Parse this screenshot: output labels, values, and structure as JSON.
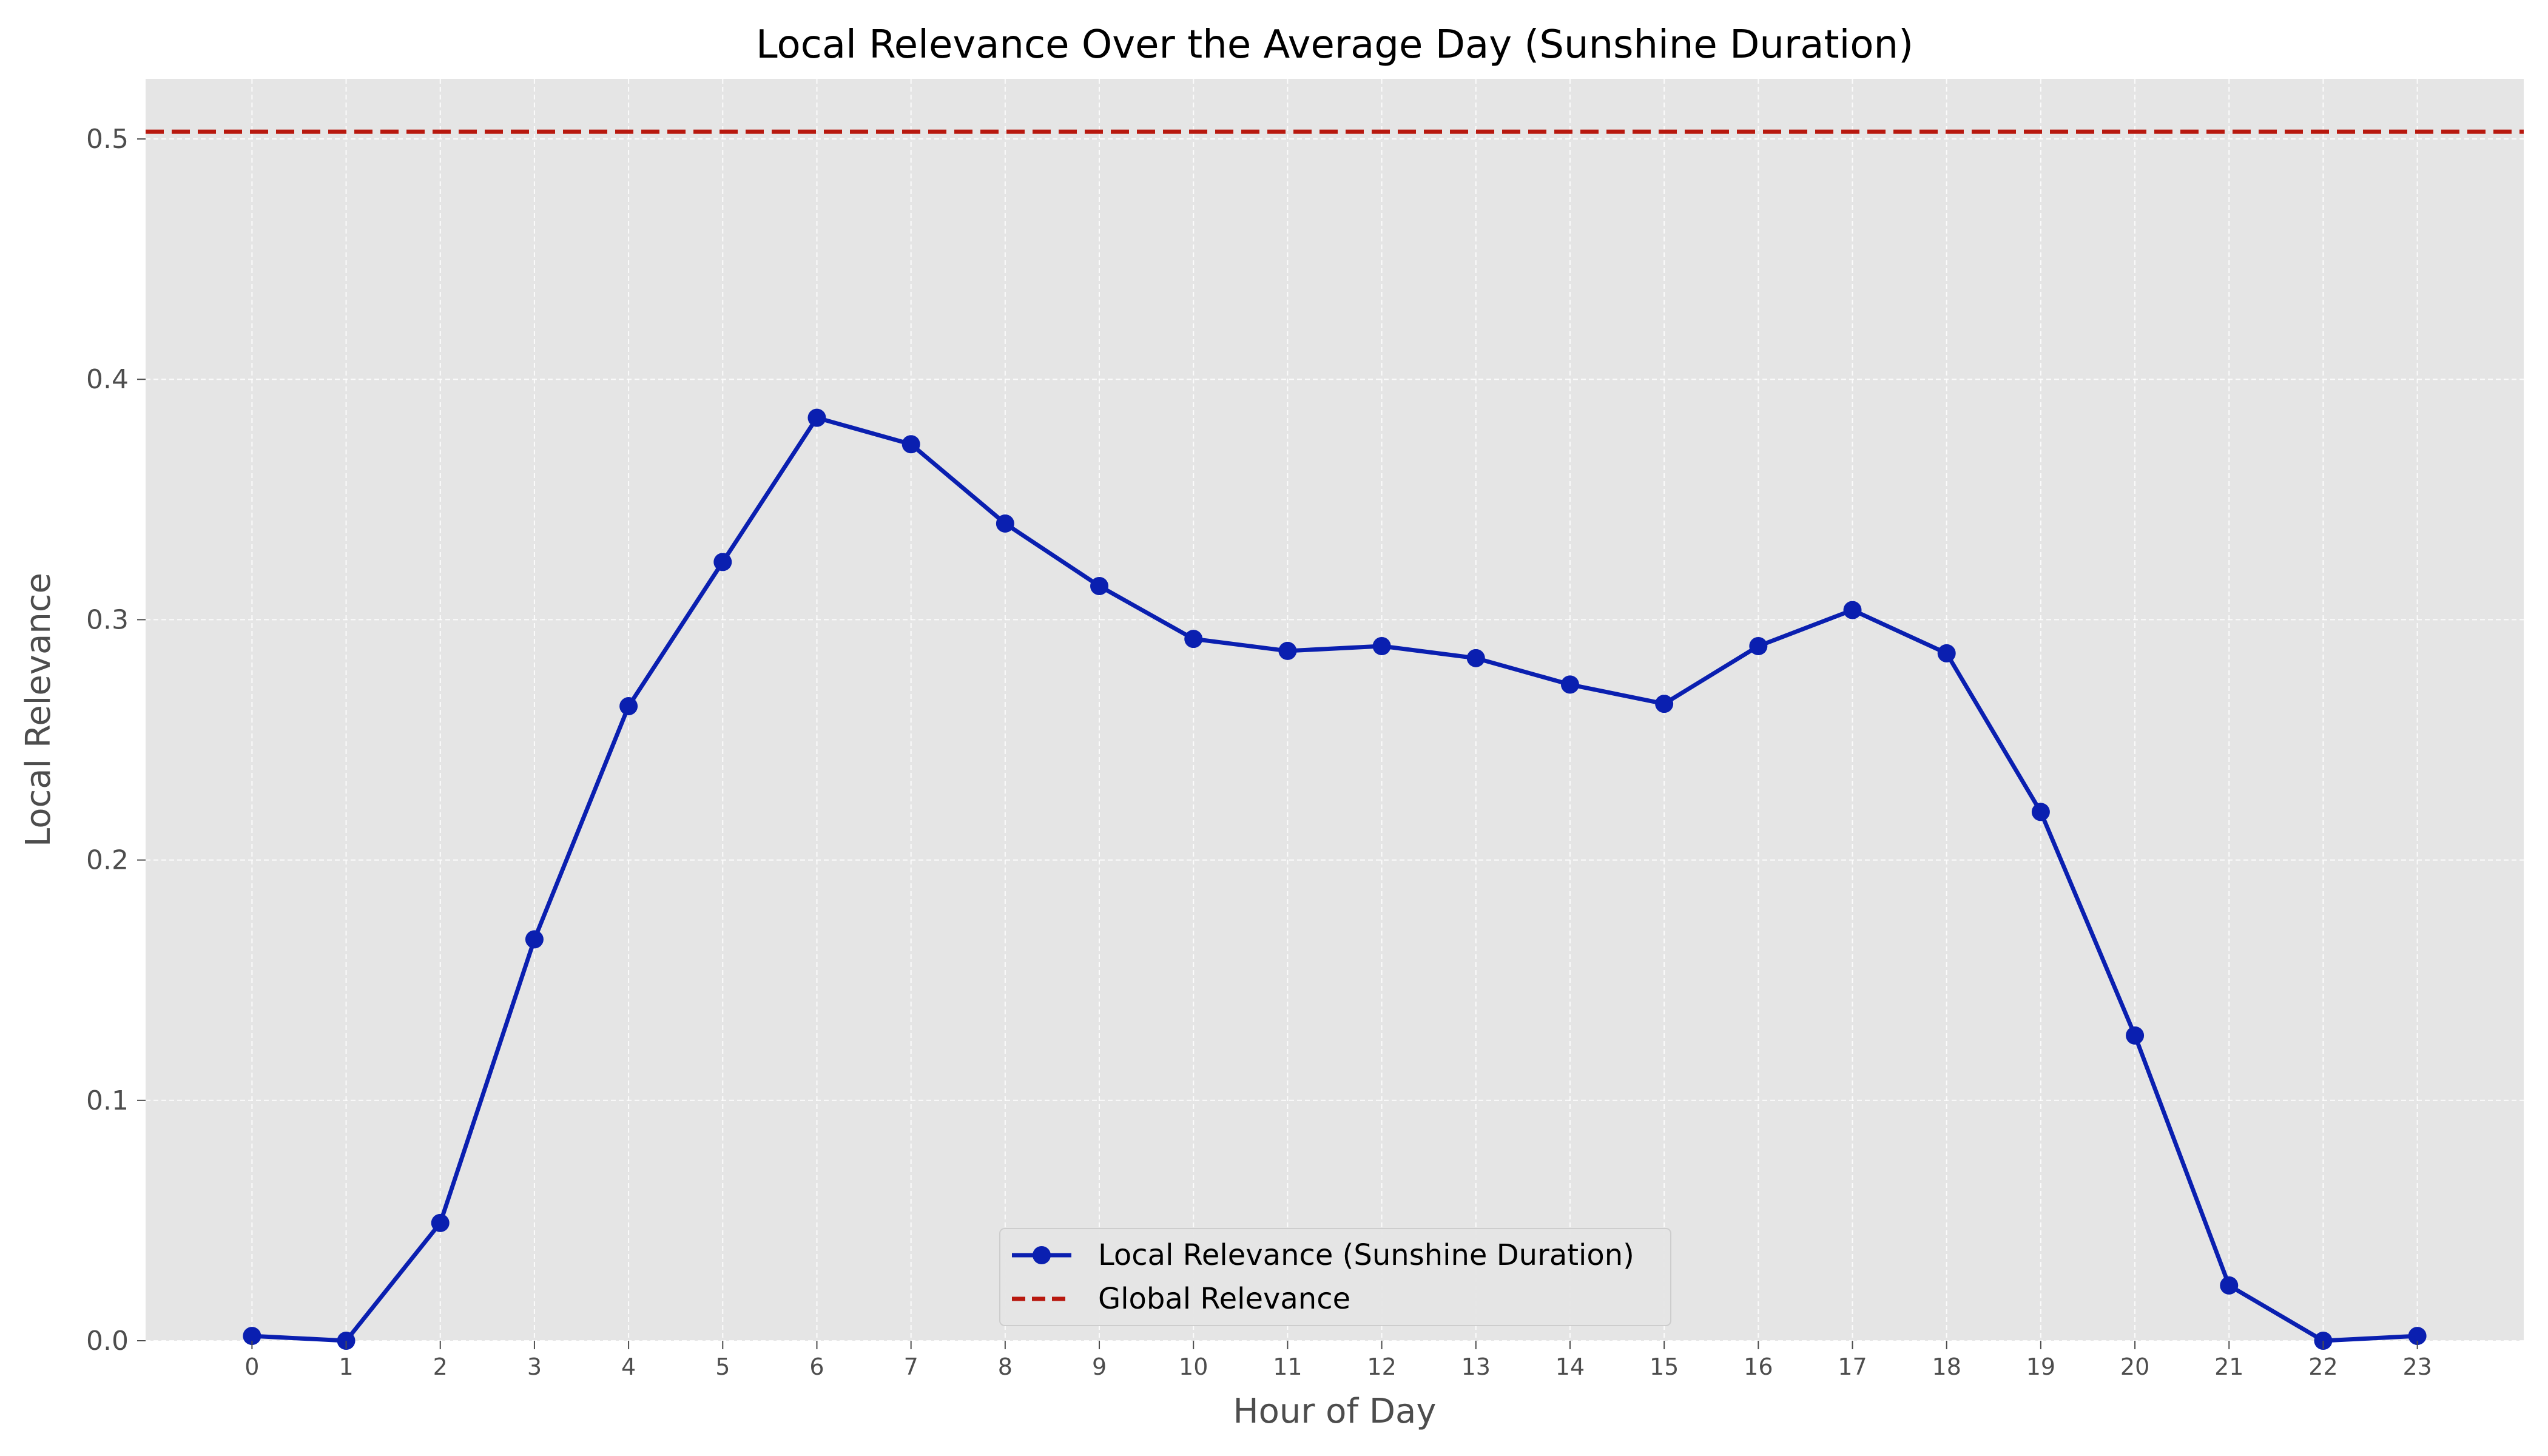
{
  "chart_data": {
    "type": "line",
    "title": "Local Relevance Over the Average Day (Sunshine Duration)",
    "xlabel": "Hour of Day",
    "ylabel": "Local Relevance",
    "x": [
      0,
      1,
      2,
      3,
      4,
      5,
      6,
      7,
      8,
      9,
      10,
      11,
      12,
      13,
      14,
      15,
      16,
      17,
      18,
      19,
      20,
      21,
      22,
      23
    ],
    "x_tick_labels": [
      "0",
      "1",
      "2",
      "3",
      "4",
      "5",
      "6",
      "7",
      "8",
      "9",
      "10",
      "11",
      "12",
      "13",
      "14",
      "15",
      "16",
      "17",
      "18",
      "19",
      "20",
      "21",
      "22",
      "23"
    ],
    "y_ticks": [
      0.0,
      0.1,
      0.2,
      0.3,
      0.4,
      0.5
    ],
    "y_tick_labels": [
      "0.0",
      "0.1",
      "0.2",
      "0.3",
      "0.4",
      "0.5"
    ],
    "xlim": [
      -1.13,
      24.13
    ],
    "ylim": [
      0.0,
      0.525
    ],
    "grid": true,
    "legend_position": "lower center",
    "series": [
      {
        "name": "Local Relevance (Sunshine Duration)",
        "style": "solid line with circle markers",
        "color": "#0a1fb0",
        "values": [
          0.002,
          0.0,
          0.049,
          0.167,
          0.264,
          0.324,
          0.384,
          0.373,
          0.34,
          0.314,
          0.292,
          0.287,
          0.289,
          0.284,
          0.273,
          0.265,
          0.289,
          0.304,
          0.286,
          0.22,
          0.127,
          0.023,
          0.0,
          0.002
        ]
      }
    ],
    "reference_lines": [
      {
        "name": "Global Relevance",
        "style": "dashed horizontal line",
        "color": "#b8180e",
        "value": 0.503
      }
    ],
    "colors": {
      "plot_background": "#e5e5e5",
      "grid": "#ffffff"
    }
  }
}
